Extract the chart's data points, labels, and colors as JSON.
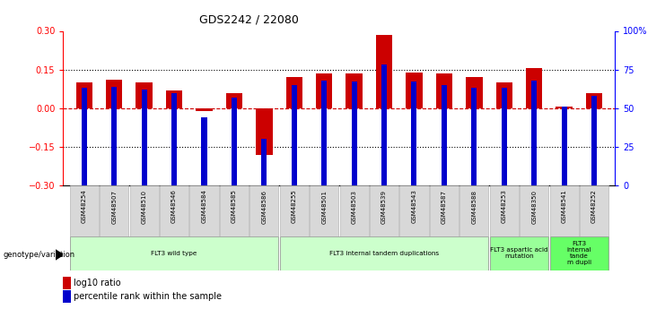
{
  "title": "GDS2242 / 22080",
  "samples": [
    "GSM48254",
    "GSM48507",
    "GSM48510",
    "GSM48546",
    "GSM48584",
    "GSM48585",
    "GSM48586",
    "GSM48255",
    "GSM48501",
    "GSM48503",
    "GSM48539",
    "GSM48543",
    "GSM48587",
    "GSM48588",
    "GSM48253",
    "GSM48350",
    "GSM48541",
    "GSM48252"
  ],
  "log10_ratio": [
    0.1,
    0.11,
    0.1,
    0.07,
    -0.01,
    0.06,
    -0.18,
    0.12,
    0.135,
    0.135,
    0.285,
    0.14,
    0.135,
    0.12,
    0.1,
    0.155,
    0.005,
    0.06
  ],
  "percentile_rank_raw": [
    63,
    64,
    62,
    60,
    44,
    57,
    30,
    65,
    68,
    67,
    78,
    67,
    65,
    63,
    63,
    68,
    51,
    58
  ],
  "ylim_left": [
    -0.3,
    0.3
  ],
  "ylim_right": [
    0,
    100
  ],
  "yticks_left": [
    -0.3,
    -0.15,
    0.0,
    0.15,
    0.3
  ],
  "yticks_right": [
    0,
    25,
    50,
    75,
    100
  ],
  "ytick_labels_right": [
    "0",
    "25",
    "50",
    "75",
    "100%"
  ],
  "red_color": "#cc0000",
  "blue_color": "#0000cc",
  "groups": [
    {
      "label": "FLT3 wild type",
      "start": 0,
      "end": 6,
      "color": "#ccffcc"
    },
    {
      "label": "FLT3 internal tandem duplications",
      "start": 7,
      "end": 13,
      "color": "#ccffcc"
    },
    {
      "label": "FLT3 aspartic acid\nmutation",
      "start": 14,
      "end": 15,
      "color": "#99ff99"
    },
    {
      "label": "FLT3\ninternal\ntande\nm dupli",
      "start": 16,
      "end": 17,
      "color": "#66ff66"
    }
  ],
  "legend_red_label": "log10 ratio",
  "legend_blue_label": "percentile rank within the sample",
  "genotype_label": "genotype/variation",
  "zero_line_color": "#cc0000",
  "dotted_color": "#000000"
}
